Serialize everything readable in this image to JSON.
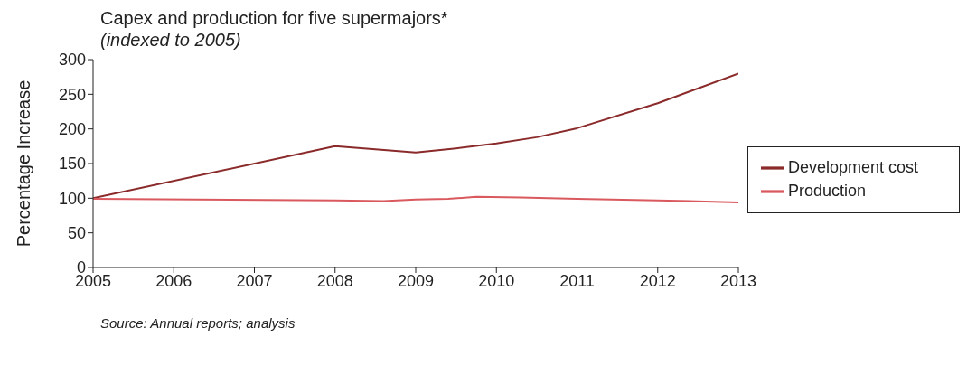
{
  "chart_data": {
    "type": "line",
    "title": "Capex and production for five supermajors*",
    "subtitle": "(indexed to 2005)",
    "ylabel": "Percentage Increase",
    "xlim": [
      2005,
      2013
    ],
    "xticks": [
      2005,
      2006,
      2007,
      2008,
      2009,
      2010,
      2011,
      2012,
      2013
    ],
    "ylim": [
      0,
      300
    ],
    "yticks": [
      0,
      50,
      100,
      150,
      200,
      250,
      300
    ],
    "series": [
      {
        "name": "Development cost",
        "color": "#8b2a2a",
        "x": [
          2005,
          2008,
          2009,
          2009.5,
          2010,
          2010.5,
          2011,
          2012,
          2013
        ],
        "values": [
          100,
          175,
          166,
          172,
          179,
          188,
          201,
          237,
          280
        ]
      },
      {
        "name": "Production",
        "color": "#d9595e",
        "x": [
          2005,
          2008,
          2008.6,
          2009,
          2009.4,
          2009.75,
          2010.3,
          2011,
          2012,
          2013
        ],
        "values": [
          99,
          97,
          96,
          98,
          99,
          102,
          101,
          99,
          97,
          94
        ]
      }
    ],
    "grid": false,
    "legend": "right",
    "marker": "none",
    "line_style": "solid",
    "annotations": [
      "Source: Annual reports; analysis"
    ]
  }
}
